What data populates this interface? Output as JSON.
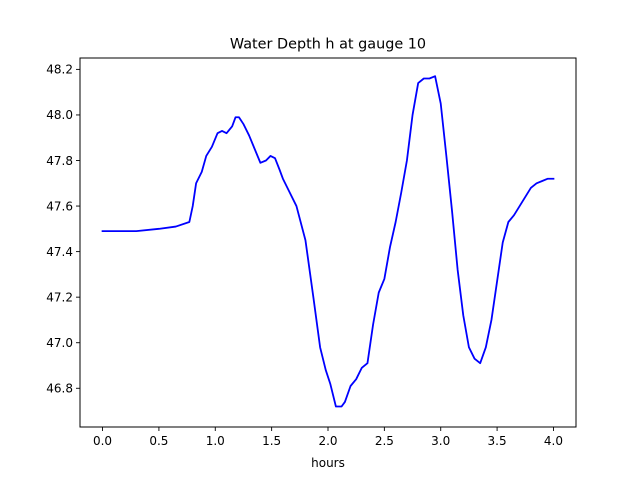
{
  "chart_data": {
    "type": "line",
    "title": "Water Depth h at gauge 10",
    "xlabel": "hours",
    "ylabel": "",
    "xlim": [
      -0.2,
      4.2
    ],
    "ylim": [
      46.63,
      48.25
    ],
    "xticks": [
      0.0,
      0.5,
      1.0,
      1.5,
      2.0,
      2.5,
      3.0,
      3.5,
      4.0
    ],
    "xtick_labels": [
      "0.0",
      "0.5",
      "1.0",
      "1.5",
      "2.0",
      "2.5",
      "3.0",
      "3.5",
      "4.0"
    ],
    "yticks": [
      46.8,
      47.0,
      47.2,
      47.4,
      47.6,
      47.8,
      48.0,
      48.2
    ],
    "ytick_labels": [
      "46.8",
      "47.0",
      "47.2",
      "47.4",
      "47.6",
      "47.8",
      "48.0",
      "48.2"
    ],
    "grid": false,
    "series": [
      {
        "color": "#0000ff",
        "x": [
          0.0,
          0.3,
          0.5,
          0.65,
          0.77,
          0.8,
          0.83,
          0.88,
          0.92,
          0.97,
          1.02,
          1.06,
          1.1,
          1.15,
          1.18,
          1.21,
          1.25,
          1.3,
          1.35,
          1.4,
          1.45,
          1.49,
          1.53,
          1.57,
          1.6,
          1.65,
          1.72,
          1.8,
          1.87,
          1.93,
          1.98,
          2.02,
          2.07,
          2.12,
          2.15,
          2.2,
          2.25,
          2.3,
          2.35,
          2.4,
          2.45,
          2.5,
          2.55,
          2.6,
          2.65,
          2.7,
          2.75,
          2.8,
          2.85,
          2.9,
          2.95,
          3.0,
          3.05,
          3.1,
          3.15,
          3.2,
          3.25,
          3.3,
          3.35,
          3.4,
          3.45,
          3.5,
          3.55,
          3.6,
          3.65,
          3.7,
          3.75,
          3.8,
          3.85,
          3.9,
          3.95,
          4.0
        ],
        "y": [
          47.49,
          47.49,
          47.5,
          47.51,
          47.53,
          47.6,
          47.7,
          47.75,
          47.82,
          47.86,
          47.92,
          47.93,
          47.92,
          47.95,
          47.99,
          47.99,
          47.96,
          47.91,
          47.85,
          47.79,
          47.8,
          47.82,
          47.81,
          47.76,
          47.72,
          47.67,
          47.6,
          47.45,
          47.2,
          46.98,
          46.88,
          46.82,
          46.72,
          46.72,
          46.74,
          46.81,
          46.84,
          46.89,
          46.91,
          47.08,
          47.22,
          47.28,
          47.42,
          47.53,
          47.66,
          47.8,
          48.0,
          48.14,
          48.16,
          48.16,
          48.17,
          48.05,
          47.82,
          47.58,
          47.32,
          47.12,
          46.98,
          46.93,
          46.91,
          46.98,
          47.1,
          47.27,
          47.44,
          47.53,
          47.56,
          47.6,
          47.64,
          47.68,
          47.7,
          47.71,
          47.72,
          47.72
        ]
      }
    ]
  }
}
